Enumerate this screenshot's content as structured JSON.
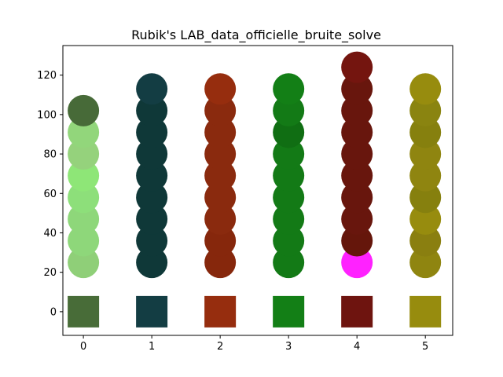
{
  "chart_data": {
    "type": "scatter",
    "title": "Rubik's LAB_data_officielle_bruite_solve",
    "xlabel": "",
    "ylabel": "",
    "xlim": [
      -0.3,
      5.4
    ],
    "ylim": [
      -12,
      135
    ],
    "xticks": [
      "0",
      "1",
      "2",
      "3",
      "4",
      "5"
    ],
    "yticks": [
      "0",
      "20",
      "40",
      "60",
      "80",
      "100",
      "120"
    ],
    "grid": false,
    "legend": "none",
    "reference_squares": [
      {
        "x": 0,
        "y": 0,
        "color": "#486c38"
      },
      {
        "x": 1,
        "y": 0,
        "color": "#133d43"
      },
      {
        "x": 2,
        "y": 0,
        "color": "#962d0e"
      },
      {
        "x": 3,
        "y": 0,
        "color": "#137f16"
      },
      {
        "x": 4,
        "y": 0,
        "color": "#6e140f"
      },
      {
        "x": 5,
        "y": 0,
        "color": "#978c0e"
      }
    ],
    "points": [
      {
        "x": 0,
        "y": 25,
        "color": "#8fcf78"
      },
      {
        "x": 0,
        "y": 36,
        "color": "#8ed77a"
      },
      {
        "x": 0,
        "y": 47,
        "color": "#8ed77a"
      },
      {
        "x": 0,
        "y": 58,
        "color": "#8ddf7a"
      },
      {
        "x": 0,
        "y": 69,
        "color": "#8ee677"
      },
      {
        "x": 0,
        "y": 80,
        "color": "#95d27c"
      },
      {
        "x": 0,
        "y": 91,
        "color": "#92d67b"
      },
      {
        "x": 0,
        "y": 102,
        "color": "#476a38"
      },
      {
        "x": 1,
        "y": 25,
        "color": "#0f3838"
      },
      {
        "x": 1,
        "y": 36,
        "color": "#0f3838"
      },
      {
        "x": 1,
        "y": 47,
        "color": "#0f3838"
      },
      {
        "x": 1,
        "y": 58,
        "color": "#0f3838"
      },
      {
        "x": 1,
        "y": 69,
        "color": "#0f3838"
      },
      {
        "x": 1,
        "y": 80,
        "color": "#0f3838"
      },
      {
        "x": 1,
        "y": 91,
        "color": "#0f3838"
      },
      {
        "x": 1,
        "y": 102,
        "color": "#0f3838"
      },
      {
        "x": 1,
        "y": 113,
        "color": "#133d43"
      },
      {
        "x": 2,
        "y": 25,
        "color": "#86270c"
      },
      {
        "x": 2,
        "y": 36,
        "color": "#86270c"
      },
      {
        "x": 2,
        "y": 47,
        "color": "#8a2a0e"
      },
      {
        "x": 2,
        "y": 58,
        "color": "#8a2a0e"
      },
      {
        "x": 2,
        "y": 69,
        "color": "#8a2a0e"
      },
      {
        "x": 2,
        "y": 80,
        "color": "#8a2a0e"
      },
      {
        "x": 2,
        "y": 91,
        "color": "#8a2a0e"
      },
      {
        "x": 2,
        "y": 102,
        "color": "#8a2a0e"
      },
      {
        "x": 2,
        "y": 113,
        "color": "#962d0e"
      },
      {
        "x": 3,
        "y": 25,
        "color": "#137a16"
      },
      {
        "x": 3,
        "y": 36,
        "color": "#137a16"
      },
      {
        "x": 3,
        "y": 47,
        "color": "#137a16"
      },
      {
        "x": 3,
        "y": 58,
        "color": "#137a16"
      },
      {
        "x": 3,
        "y": 69,
        "color": "#137a16"
      },
      {
        "x": 3,
        "y": 80,
        "color": "#137a16"
      },
      {
        "x": 3,
        "y": 91,
        "color": "#106e13"
      },
      {
        "x": 3,
        "y": 102,
        "color": "#137a16"
      },
      {
        "x": 3,
        "y": 113,
        "color": "#137f16"
      },
      {
        "x": 4,
        "y": 25,
        "color": "#ff22ff"
      },
      {
        "x": 4,
        "y": 36,
        "color": "#65160b"
      },
      {
        "x": 4,
        "y": 47,
        "color": "#68160d"
      },
      {
        "x": 4,
        "y": 58,
        "color": "#68160d"
      },
      {
        "x": 4,
        "y": 69,
        "color": "#68160d"
      },
      {
        "x": 4,
        "y": 80,
        "color": "#68160d"
      },
      {
        "x": 4,
        "y": 91,
        "color": "#68160d"
      },
      {
        "x": 4,
        "y": 102,
        "color": "#68160d"
      },
      {
        "x": 4,
        "y": 113,
        "color": "#68160d"
      },
      {
        "x": 4,
        "y": 124,
        "color": "#74150f"
      },
      {
        "x": 5,
        "y": 25,
        "color": "#8f8510"
      },
      {
        "x": 5,
        "y": 36,
        "color": "#8a7f10"
      },
      {
        "x": 5,
        "y": 47,
        "color": "#978c0e"
      },
      {
        "x": 5,
        "y": 58,
        "color": "#86800e"
      },
      {
        "x": 5,
        "y": 69,
        "color": "#8f8510"
      },
      {
        "x": 5,
        "y": 80,
        "color": "#8f8510"
      },
      {
        "x": 5,
        "y": 91,
        "color": "#86800e"
      },
      {
        "x": 5,
        "y": 102,
        "color": "#8a8410"
      },
      {
        "x": 5,
        "y": 113,
        "color": "#978c0e"
      }
    ]
  }
}
